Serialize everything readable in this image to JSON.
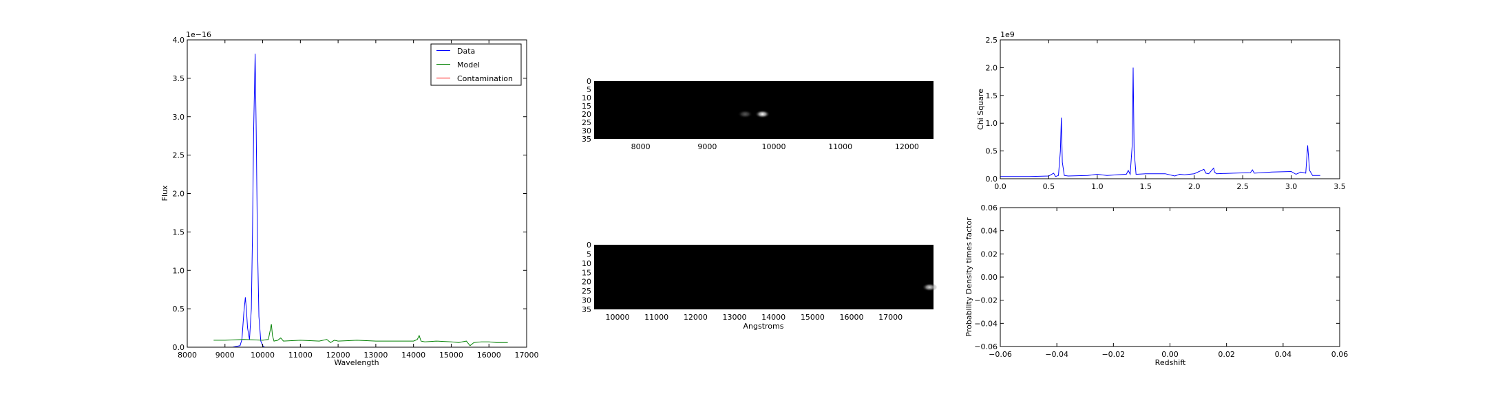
{
  "chart_data": [
    {
      "id": "spectrum",
      "type": "line",
      "xlabel": "Wavelength",
      "ylabel": "Flux",
      "xlim": [
        8000,
        17000
      ],
      "ylim": [
        0,
        4.0
      ],
      "offset_text": "1e−16",
      "xticks": [
        8000,
        9000,
        10000,
        11000,
        12000,
        13000,
        14000,
        15000,
        16000,
        17000
      ],
      "yticks": [
        0.0,
        0.5,
        1.0,
        1.5,
        2.0,
        2.5,
        3.0,
        3.5,
        4.0
      ],
      "ytick_format": "1",
      "grid": false,
      "legend_position": "top-right",
      "series": [
        {
          "name": "Data",
          "color": "#0000ff",
          "x": [
            9200,
            9400,
            9450,
            9500,
            9540,
            9570,
            9600,
            9650,
            9700,
            9730,
            9760,
            9800,
            9830,
            9860,
            9900,
            9950,
            10000,
            10050,
            10100
          ],
          "y": [
            0.0,
            0.02,
            0.1,
            0.45,
            0.65,
            0.48,
            0.25,
            0.1,
            0.5,
            1.5,
            2.8,
            3.82,
            2.8,
            1.4,
            0.4,
            0.08,
            0.02,
            0.0,
            0.0
          ]
        },
        {
          "name": "Model",
          "color": "#008000",
          "x": [
            8700,
            9000,
            9500,
            10000,
            10150,
            10200,
            10230,
            10260,
            10300,
            10400,
            10480,
            10550,
            11000,
            11500,
            11700,
            11800,
            11900,
            12000,
            12500,
            13000,
            13500,
            14000,
            14100,
            14150,
            14200,
            14300,
            14600,
            15000,
            15200,
            15400,
            15500,
            15600,
            15800,
            16000,
            16200,
            16500
          ],
          "y": [
            0.09,
            0.09,
            0.1,
            0.09,
            0.1,
            0.22,
            0.3,
            0.15,
            0.08,
            0.09,
            0.12,
            0.08,
            0.09,
            0.08,
            0.1,
            0.06,
            0.09,
            0.08,
            0.09,
            0.08,
            0.08,
            0.08,
            0.1,
            0.15,
            0.08,
            0.07,
            0.08,
            0.07,
            0.06,
            0.08,
            0.02,
            0.06,
            0.07,
            0.07,
            0.06,
            0.06
          ]
        },
        {
          "name": "Contamination",
          "color": "#ff0000",
          "x": [
            8700,
            16500
          ],
          "y": [
            0.0,
            0.0
          ]
        }
      ]
    },
    {
      "id": "image-top",
      "type": "heatmap",
      "xticks": [
        8000,
        9000,
        10000,
        11000,
        12000
      ],
      "yticks": [
        0,
        5,
        10,
        15,
        20,
        25,
        30,
        35
      ],
      "xlim": [
        7300,
        12400
      ],
      "ylim": [
        0,
        35
      ],
      "sources": [
        {
          "x": 9830,
          "y": 20,
          "intensity": 1.0
        },
        {
          "x": 9570,
          "y": 20,
          "intensity": 0.35
        }
      ]
    },
    {
      "id": "image-bottom",
      "type": "heatmap",
      "xlabel": "Angstroms",
      "xticks": [
        10000,
        11000,
        12000,
        13000,
        14000,
        15000,
        16000,
        17000
      ],
      "yticks": [
        0,
        5,
        10,
        15,
        20,
        25,
        30,
        35
      ],
      "xlim": [
        9400,
        18100
      ],
      "ylim": [
        0,
        35
      ],
      "sources": [
        {
          "x": 18000,
          "y": 23,
          "intensity": 0.85
        }
      ]
    },
    {
      "id": "chi-square",
      "type": "line",
      "ylabel": "Chi Square",
      "offset_text": "1e9",
      "xlim": [
        0.0,
        3.5
      ],
      "ylim": [
        0.0,
        2.5
      ],
      "xticks": [
        0.0,
        0.5,
        1.0,
        1.5,
        2.0,
        2.5,
        3.0,
        3.5
      ],
      "yticks": [
        0.0,
        0.5,
        1.0,
        1.5,
        2.0,
        2.5
      ],
      "xtick_format": "1",
      "ytick_format": "1",
      "grid": false,
      "series": [
        {
          "color": "#0000ff",
          "x": [
            0.0,
            0.3,
            0.5,
            0.55,
            0.57,
            0.6,
            0.62,
            0.63,
            0.64,
            0.66,
            0.7,
            0.9,
            1.0,
            1.1,
            1.2,
            1.3,
            1.32,
            1.34,
            1.36,
            1.37,
            1.38,
            1.4,
            1.5,
            1.7,
            1.8,
            1.85,
            1.9,
            2.0,
            2.1,
            2.12,
            2.15,
            2.2,
            2.21,
            2.23,
            2.4,
            2.58,
            2.6,
            2.62,
            2.8,
            3.0,
            3.05,
            3.1,
            3.15,
            3.17,
            3.19,
            3.22,
            3.3
          ],
          "y": [
            0.04,
            0.04,
            0.05,
            0.1,
            0.04,
            0.06,
            0.5,
            1.1,
            0.3,
            0.06,
            0.05,
            0.06,
            0.08,
            0.06,
            0.07,
            0.08,
            0.15,
            0.08,
            0.6,
            2.0,
            0.5,
            0.08,
            0.09,
            0.09,
            0.05,
            0.08,
            0.07,
            0.09,
            0.17,
            0.1,
            0.09,
            0.19,
            0.12,
            0.09,
            0.1,
            0.11,
            0.16,
            0.1,
            0.12,
            0.13,
            0.08,
            0.12,
            0.1,
            0.6,
            0.15,
            0.06,
            0.06
          ]
        }
      ]
    },
    {
      "id": "probability",
      "type": "line",
      "xlabel": "Redshift",
      "ylabel": "Probability Density times factor",
      "xlim": [
        -0.06,
        0.06
      ],
      "ylim": [
        -0.06,
        0.06
      ],
      "xticks": [
        -0.06,
        -0.04,
        -0.02,
        0.0,
        0.02,
        0.04,
        0.06
      ],
      "yticks": [
        -0.06,
        -0.04,
        -0.02,
        0.0,
        0.02,
        0.04,
        0.06
      ],
      "xtick_format": "2",
      "ytick_format": "2",
      "grid": false,
      "series": []
    }
  ]
}
